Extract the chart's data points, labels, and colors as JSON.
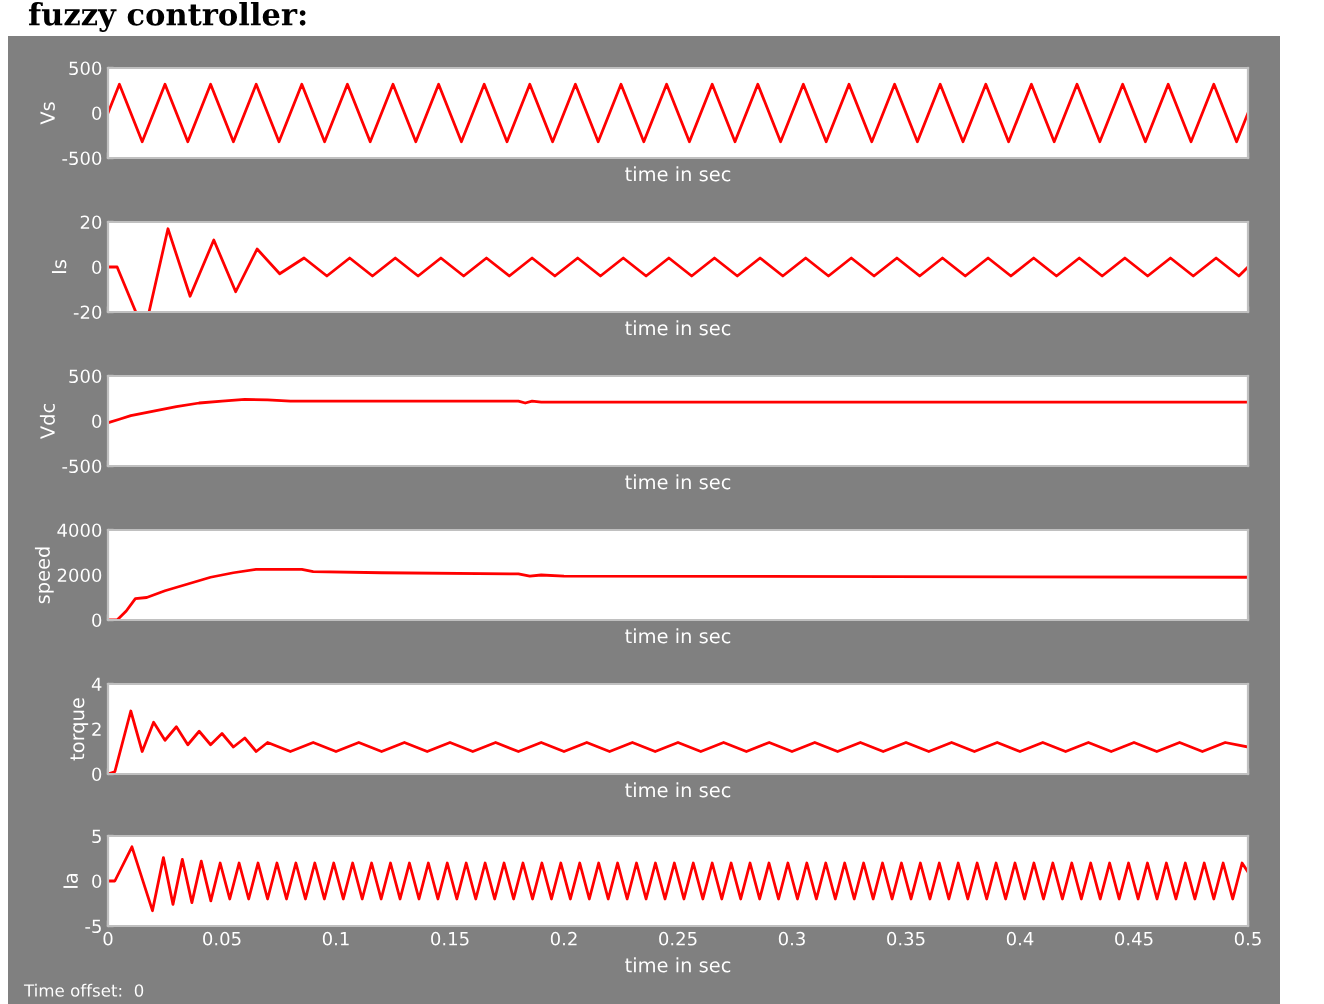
{
  "chart_data": [
    {
      "type": "line",
      "title": "fuzzy controller:",
      "ylabel": "Vs",
      "xlabel": "time in sec",
      "xlim": [
        0,
        0.5
      ],
      "ylim": [
        -500,
        500
      ],
      "yticks": [
        -500,
        0,
        500
      ],
      "xticks": [
        0,
        0.05,
        0.1,
        0.15,
        0.2,
        0.25,
        0.3,
        0.35,
        0.4,
        0.45,
        0.5
      ],
      "tick_labels": "y",
      "series": [
        {
          "color": "#ff0000",
          "x": [
            0,
            0.005,
            0.015,
            0.025,
            0.035,
            0.045,
            0.055,
            0.065,
            0.075,
            0.085,
            0.095,
            0.105,
            0.115,
            0.125,
            0.135,
            0.145,
            0.155,
            0.165,
            0.175,
            0.185,
            0.195,
            0.205,
            0.215,
            0.225,
            0.235,
            0.245,
            0.255,
            0.265,
            0.275,
            0.285,
            0.295,
            0.305,
            0.315,
            0.325,
            0.335,
            0.345,
            0.355,
            0.365,
            0.375,
            0.385,
            0.395,
            0.405,
            0.415,
            0.425,
            0.435,
            0.445,
            0.455,
            0.465,
            0.475,
            0.485,
            0.495,
            0.5
          ],
          "values": [
            0,
            320,
            -320,
            320,
            -320,
            320,
            -320,
            320,
            -320,
            320,
            -320,
            320,
            -320,
            320,
            -320,
            320,
            -320,
            320,
            -320,
            320,
            -320,
            320,
            -320,
            320,
            -320,
            320,
            -320,
            320,
            -320,
            320,
            -320,
            320,
            -320,
            320,
            -320,
            320,
            -320,
            320,
            -320,
            320,
            -320,
            320,
            -320,
            320,
            -320,
            320,
            -320,
            320,
            -320,
            320,
            -320,
            0
          ]
        }
      ]
    },
    {
      "type": "line",
      "ylabel": "Is",
      "xlabel": "time in sec",
      "xlim": [
        0,
        0.5
      ],
      "ylim": [
        -20,
        20
      ],
      "yticks": [
        -20,
        0,
        20
      ],
      "xticks": [
        0,
        0.05,
        0.1,
        0.15,
        0.2,
        0.25,
        0.3,
        0.35,
        0.4,
        0.45,
        0.5
      ],
      "tick_labels": "y",
      "series": [
        {
          "color": "#ff0000",
          "x": [
            0,
            0.004,
            0.0122,
            0.0144,
            0.018,
            0.0263,
            0.036,
            0.0464,
            0.056,
            0.0654,
            0.0753,
            0.086,
            0.096,
            0.106,
            0.116,
            0.126,
            0.136,
            0.146,
            0.156,
            0.166,
            0.176,
            0.186,
            0.196,
            0.206,
            0.216,
            0.226,
            0.236,
            0.246,
            0.256,
            0.266,
            0.276,
            0.286,
            0.296,
            0.306,
            0.316,
            0.326,
            0.336,
            0.346,
            0.356,
            0.366,
            0.376,
            0.386,
            0.396,
            0.406,
            0.416,
            0.426,
            0.436,
            0.446,
            0.456,
            0.466,
            0.476,
            0.486,
            0.496,
            0.5
          ],
          "values": [
            0,
            0,
            -20,
            null,
            -20,
            17,
            -13,
            12,
            -11,
            8,
            -3,
            4,
            -4,
            4,
            -4,
            4,
            -4,
            4,
            -4,
            4,
            -4,
            4,
            -4,
            4,
            -4,
            4,
            -4,
            4,
            -4,
            4,
            -4,
            4,
            -4,
            4,
            -4,
            4,
            -4,
            4,
            -4,
            4,
            -4,
            4,
            -4,
            4,
            -4,
            4,
            -4,
            4,
            -4,
            4,
            -4,
            4,
            -4,
            0
          ]
        }
      ]
    },
    {
      "type": "line",
      "ylabel": "Vdc",
      "xlabel": "time in sec",
      "xlim": [
        0,
        0.5
      ],
      "ylim": [
        -500,
        500
      ],
      "yticks": [
        -500,
        0,
        500
      ],
      "xticks": [
        0,
        0.05,
        0.1,
        0.15,
        0.2,
        0.25,
        0.3,
        0.35,
        0.4,
        0.45,
        0.5
      ],
      "tick_labels": "y",
      "series": [
        {
          "color": "#ff0000",
          "x": [
            0,
            0.005,
            0.01,
            0.02,
            0.03,
            0.04,
            0.05,
            0.06,
            0.07,
            0.08,
            0.18,
            0.183,
            0.186,
            0.19,
            0.5
          ],
          "values": [
            -20,
            20,
            60,
            110,
            160,
            200,
            220,
            240,
            235,
            220,
            220,
            200,
            220,
            210,
            210
          ]
        }
      ]
    },
    {
      "type": "line",
      "ylabel": "speed",
      "xlabel": "time in sec",
      "xlim": [
        0,
        0.5
      ],
      "ylim": [
        0,
        4000
      ],
      "yticks": [
        0,
        2000,
        4000
      ],
      "xticks": [
        0,
        0.05,
        0.1,
        0.15,
        0.2,
        0.25,
        0.3,
        0.35,
        0.4,
        0.45,
        0.5
      ],
      "tick_labels": "y",
      "series": [
        {
          "color": "#ff0000",
          "x": [
            0,
            0.004,
            0.008,
            0.012,
            0.017,
            0.025,
            0.035,
            0.045,
            0.055,
            0.065,
            0.085,
            0.09,
            0.12,
            0.18,
            0.185,
            0.19,
            0.2,
            0.5
          ],
          "values": [
            0,
            0,
            400,
            950,
            1000,
            1300,
            1600,
            1900,
            2100,
            2250,
            2250,
            2150,
            2100,
            2050,
            1950,
            2000,
            1950,
            1900
          ]
        }
      ]
    },
    {
      "type": "line",
      "ylabel": "torque",
      "xlabel": "time in sec",
      "xlim": [
        0,
        0.5
      ],
      "ylim": [
        0,
        4
      ],
      "yticks": [
        0,
        2,
        4
      ],
      "xticks": [
        0,
        0.05,
        0.1,
        0.15,
        0.2,
        0.25,
        0.3,
        0.35,
        0.4,
        0.45,
        0.5
      ],
      "tick_labels": "y",
      "series": [
        {
          "color": "#ff0000",
          "x": [
            0,
            0.003,
            0.01,
            0.015,
            0.02,
            0.025,
            0.03,
            0.035,
            0.04,
            0.045,
            0.05,
            0.055,
            0.06,
            0.065,
            0.07,
            0.08,
            0.09,
            0.1,
            0.11,
            0.12,
            0.13,
            0.14,
            0.15,
            0.16,
            0.17,
            0.18,
            0.19,
            0.2,
            0.21,
            0.22,
            0.23,
            0.24,
            0.25,
            0.26,
            0.27,
            0.28,
            0.29,
            0.3,
            0.31,
            0.32,
            0.33,
            0.34,
            0.35,
            0.36,
            0.37,
            0.38,
            0.39,
            0.4,
            0.41,
            0.42,
            0.43,
            0.44,
            0.45,
            0.46,
            0.47,
            0.48,
            0.49,
            0.5
          ],
          "values": [
            0,
            0.1,
            2.8,
            1.0,
            2.3,
            1.5,
            2.1,
            1.3,
            1.9,
            1.3,
            1.8,
            1.2,
            1.6,
            1.0,
            1.4,
            1.0,
            1.4,
            1.0,
            1.4,
            1.0,
            1.4,
            1.0,
            1.4,
            1.0,
            1.4,
            1.0,
            1.4,
            1.0,
            1.4,
            1.0,
            1.4,
            1.0,
            1.4,
            1.0,
            1.4,
            1.0,
            1.4,
            1.0,
            1.4,
            1.0,
            1.4,
            1.0,
            1.4,
            1.0,
            1.4,
            1.0,
            1.4,
            1.0,
            1.4,
            1.0,
            1.4,
            1.0,
            1.4,
            1.0,
            1.4,
            1.0,
            1.4,
            1.2
          ]
        }
      ]
    },
    {
      "type": "line",
      "ylabel": "Ia",
      "xlabel": "time in sec",
      "xlim": [
        0,
        0.5
      ],
      "ylim": [
        -5,
        5
      ],
      "yticks": [
        -5,
        0,
        5
      ],
      "xticks": [
        0,
        0.05,
        0.1,
        0.15,
        0.2,
        0.25,
        0.3,
        0.35,
        0.4,
        0.45,
        0.5
      ],
      "annotations": [
        "Time offset:  0"
      ],
      "series": [
        {
          "color": "#ff0000",
          "x": [
            0,
            0.003,
            0.0105,
            0.0195,
            0.0243,
            0.0285,
            0.0326,
            0.0368,
            0.0409,
            0.0451,
            0.0492,
            0.0534,
            0.0575,
            0.0617,
            0.0658,
            0.07,
            0.0741,
            0.0783,
            0.0824,
            0.0866,
            0.0907,
            0.0949,
            0.099,
            0.1032,
            0.1073,
            0.1115,
            0.1156,
            0.1198,
            0.1239,
            0.1281,
            0.1322,
            0.1364,
            0.1405,
            0.1447,
            0.1488,
            0.153,
            0.1571,
            0.1613,
            0.1654,
            0.1696,
            0.1737,
            0.1779,
            0.182,
            0.1862,
            0.1903,
            0.1945,
            0.1986,
            0.2028,
            0.2069,
            0.2111,
            0.2152,
            0.2194,
            0.2235,
            0.2277,
            0.2318,
            0.236,
            0.2401,
            0.2443,
            0.2484,
            0.2526,
            0.2567,
            0.2609,
            0.265,
            0.2692,
            0.2733,
            0.2775,
            0.2816,
            0.2858,
            0.2899,
            0.2941,
            0.2982,
            0.3024,
            0.3065,
            0.3107,
            0.3148,
            0.319,
            0.3231,
            0.3273,
            0.3314,
            0.3356,
            0.3397,
            0.3439,
            0.348,
            0.3522,
            0.3563,
            0.3605,
            0.3646,
            0.3688,
            0.3729,
            0.3771,
            0.3812,
            0.3854,
            0.3895,
            0.3937,
            0.3978,
            0.402,
            0.4061,
            0.4103,
            0.4144,
            0.4186,
            0.4227,
            0.4269,
            0.431,
            0.4352,
            0.4393,
            0.4435,
            0.4476,
            0.4518,
            0.4559,
            0.4601,
            0.4642,
            0.4684,
            0.4725,
            0.4767,
            0.4808,
            0.485,
            0.4891,
            0.4933,
            0.4974,
            0.5
          ],
          "values": [
            0,
            0,
            3.8,
            -3.3,
            2.6,
            -2.6,
            2.4,
            -2.4,
            2.2,
            -2.2,
            2.0,
            -2.0,
            2.0,
            -2.0,
            2.0,
            -2.0,
            2.0,
            -2.0,
            2.0,
            -2.0,
            2.0,
            -2.0,
            2.0,
            -2.0,
            2.0,
            -2.0,
            2.0,
            -2.0,
            2.0,
            -2.0,
            2.0,
            -2.0,
            2.0,
            -2.0,
            2.0,
            -2.0,
            2.0,
            -2.0,
            2.0,
            -2.0,
            2.0,
            -2.0,
            2.0,
            -2.0,
            2.0,
            -2.0,
            2.0,
            -2.0,
            2.0,
            -2.0,
            2.0,
            -2.0,
            2.0,
            -2.0,
            2.0,
            -2.0,
            2.0,
            -2.0,
            2.0,
            -2.0,
            2.0,
            -2.0,
            2.0,
            -2.0,
            2.0,
            -2.0,
            2.0,
            -2.0,
            2.0,
            -2.0,
            2.0,
            -2.0,
            2.0,
            -2.0,
            2.0,
            -2.0,
            2.0,
            -2.0,
            2.0,
            -2.0,
            2.0,
            -2.0,
            2.0,
            -2.0,
            2.0,
            -2.0,
            2.0,
            -2.0,
            2.0,
            -2.0,
            2.0,
            -2.0,
            2.0,
            -2.0,
            2.0,
            -2.0,
            2.0,
            -2.0,
            2.0,
            -2.0,
            2.0,
            -2.0,
            2.0,
            -2.0,
            2.0,
            -2.0,
            2.0,
            -2.0,
            2.0,
            -2.0,
            2.0,
            -2.0,
            2.0,
            -2.0,
            2.0,
            -2.0,
            2.0,
            -2.0,
            2.0,
            1.0
          ]
        }
      ]
    }
  ]
}
